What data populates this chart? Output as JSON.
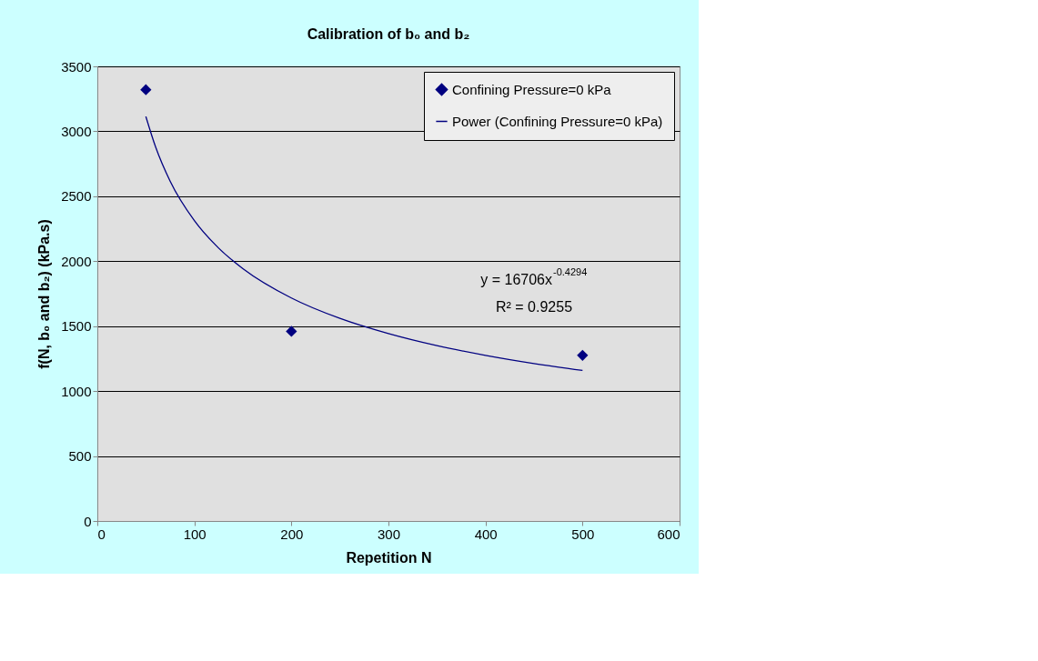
{
  "chart_data": {
    "type": "scatter",
    "title": "Calibration of b₀ and b₂",
    "xlabel": "Repetition N",
    "ylabel": "f(N, b₀ and b₂) (kPa.s)",
    "series": [
      {
        "name": "Confining Pressure=0 kPa",
        "color": "#000080",
        "marker": "diamond",
        "x": [
          50,
          200,
          500
        ],
        "values": [
          3320,
          1460,
          1275
        ]
      },
      {
        "name": "Power (Confining Pressure=0 kPa)",
        "type": "line",
        "color": "#000080",
        "line_style": "solid",
        "x": [
          50,
          60,
          75,
          100,
          125,
          150,
          200,
          250,
          300,
          350,
          400,
          450,
          500
        ],
        "values": [
          3114,
          2880,
          2616,
          2312,
          2101,
          1943,
          1717,
          1560,
          1443,
          1350,
          1275,
          1212,
          1159
        ]
      }
    ],
    "xlim": [
      0,
      600
    ],
    "xticks": [
      0,
      100,
      200,
      300,
      400,
      500,
      600
    ],
    "ylim": [
      0,
      3500
    ],
    "yticks": [
      0,
      500,
      1000,
      1500,
      2000,
      2500,
      3000,
      3500
    ],
    "grid": "y",
    "legend": "top right",
    "annotations": [
      "y = 16706x$^{-0.4294}$",
      "R² = 0.9255"
    ]
  }
}
